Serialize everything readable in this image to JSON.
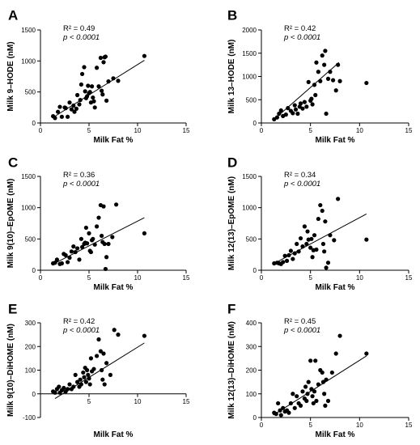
{
  "chart_data": [
    {
      "type": "scatter",
      "panel": "A",
      "xlabel": "Milk Fat %",
      "ylabel": "Milk 9–HODE (nM)",
      "xlim": [
        0,
        15
      ],
      "ylim": [
        0,
        1500
      ],
      "xticks": [
        0,
        5,
        10,
        15
      ],
      "yticks": [
        0,
        500,
        1000,
        1500
      ],
      "annotation": {
        "r2": "R² = 0.49",
        "p": "p < 0.0001"
      },
      "fit_line": {
        "x": [
          1.2,
          10.7
        ],
        "y": [
          80,
          1010
        ]
      },
      "points": [
        [
          1.3,
          110
        ],
        [
          1.5,
          80
        ],
        [
          1.8,
          180
        ],
        [
          2.0,
          260
        ],
        [
          2.2,
          100
        ],
        [
          2.5,
          250
        ],
        [
          2.6,
          240
        ],
        [
          2.8,
          100
        ],
        [
          3.0,
          330
        ],
        [
          3.2,
          220
        ],
        [
          3.4,
          280
        ],
        [
          3.5,
          180
        ],
        [
          3.7,
          230
        ],
        [
          3.8,
          450
        ],
        [
          4.0,
          300
        ],
        [
          4.1,
          370
        ],
        [
          4.2,
          620
        ],
        [
          4.3,
          790
        ],
        [
          4.5,
          900
        ],
        [
          4.6,
          510
        ],
        [
          4.7,
          400
        ],
        [
          4.8,
          430
        ],
        [
          4.9,
          600
        ],
        [
          5.0,
          480
        ],
        [
          5.1,
          500
        ],
        [
          5.2,
          330
        ],
        [
          5.3,
          590
        ],
        [
          5.4,
          410
        ],
        [
          5.5,
          350
        ],
        [
          5.6,
          250
        ],
        [
          5.8,
          890
        ],
        [
          6.0,
          590
        ],
        [
          6.2,
          1050
        ],
        [
          6.3,
          520
        ],
        [
          6.4,
          460
        ],
        [
          6.5,
          980
        ],
        [
          6.6,
          1060
        ],
        [
          6.7,
          1070
        ],
        [
          6.8,
          360
        ],
        [
          7.0,
          670
        ],
        [
          7.5,
          720
        ],
        [
          8.0,
          680
        ],
        [
          10.7,
          1080
        ]
      ]
    },
    {
      "type": "scatter",
      "panel": "B",
      "xlabel": "Milk Fat %",
      "ylabel": "Milk 13–HODE (nM)",
      "xlim": [
        0,
        15
      ],
      "ylim": [
        0,
        2000
      ],
      "xticks": [
        0,
        5,
        10,
        15
      ],
      "yticks": [
        0,
        500,
        1000,
        1500,
        2000
      ],
      "annotation": {
        "r2": "R² = 0.42",
        "p": "p < 0.0001"
      },
      "fit_line": {
        "x": [
          1.2,
          7.9
        ],
        "y": [
          60,
          1300
        ]
      },
      "points": [
        [
          1.3,
          80
        ],
        [
          1.6,
          120
        ],
        [
          1.8,
          200
        ],
        [
          2.0,
          270
        ],
        [
          2.2,
          150
        ],
        [
          2.5,
          180
        ],
        [
          2.7,
          320
        ],
        [
          3.0,
          260
        ],
        [
          3.2,
          210
        ],
        [
          3.4,
          380
        ],
        [
          3.5,
          290
        ],
        [
          3.7,
          200
        ],
        [
          3.9,
          350
        ],
        [
          4.0,
          420
        ],
        [
          4.2,
          310
        ],
        [
          4.4,
          450
        ],
        [
          4.6,
          350
        ],
        [
          4.8,
          880
        ],
        [
          5.0,
          480
        ],
        [
          5.1,
          520
        ],
        [
          5.2,
          400
        ],
        [
          5.4,
          820
        ],
        [
          5.5,
          600
        ],
        [
          5.6,
          1300
        ],
        [
          5.8,
          1100
        ],
        [
          6.0,
          900
        ],
        [
          6.2,
          1450
        ],
        [
          6.4,
          1250
        ],
        [
          6.5,
          1550
        ],
        [
          6.6,
          200
        ],
        [
          6.8,
          950
        ],
        [
          7.0,
          1100
        ],
        [
          7.3,
          920
        ],
        [
          7.6,
          700
        ],
        [
          7.8,
          1250
        ],
        [
          8.0,
          900
        ],
        [
          10.7,
          860
        ]
      ]
    },
    {
      "type": "scatter",
      "panel": "C",
      "xlabel": "Milk Fat %",
      "ylabel": "Milk 9(10)–EpOME (nM)",
      "xlim": [
        0,
        15
      ],
      "ylim": [
        0,
        1500
      ],
      "xticks": [
        0,
        5,
        10,
        15
      ],
      "yticks": [
        0,
        500,
        1000,
        1500
      ],
      "annotation": {
        "r2": "R² = 0.36",
        "p": "p < 0.0001"
      },
      "fit_line": {
        "x": [
          1.2,
          10.7
        ],
        "y": [
          90,
          840
        ]
      },
      "points": [
        [
          1.3,
          110
        ],
        [
          1.5,
          120
        ],
        [
          1.7,
          170
        ],
        [
          2.0,
          100
        ],
        [
          2.2,
          110
        ],
        [
          2.4,
          260
        ],
        [
          2.6,
          240
        ],
        [
          2.8,
          130
        ],
        [
          3.0,
          200
        ],
        [
          3.2,
          300
        ],
        [
          3.4,
          380
        ],
        [
          3.6,
          290
        ],
        [
          3.8,
          350
        ],
        [
          4.0,
          170
        ],
        [
          4.2,
          500
        ],
        [
          4.3,
          370
        ],
        [
          4.5,
          420
        ],
        [
          4.6,
          440
        ],
        [
          4.7,
          680
        ],
        [
          4.8,
          430
        ],
        [
          5.0,
          590
        ],
        [
          5.1,
          310
        ],
        [
          5.2,
          290
        ],
        [
          5.3,
          480
        ],
        [
          5.4,
          500
        ],
        [
          5.6,
          410
        ],
        [
          5.8,
          700
        ],
        [
          6.0,
          840
        ],
        [
          6.2,
          1040
        ],
        [
          6.3,
          550
        ],
        [
          6.4,
          450
        ],
        [
          6.5,
          1020
        ],
        [
          6.6,
          420
        ],
        [
          6.7,
          20
        ],
        [
          6.8,
          210
        ],
        [
          7.0,
          420
        ],
        [
          7.4,
          530
        ],
        [
          7.8,
          1050
        ],
        [
          10.7,
          590
        ]
      ]
    },
    {
      "type": "scatter",
      "panel": "D",
      "xlabel": "Milk Fat %",
      "ylabel": "Milk 12(13)–EpOME (nM)",
      "xlim": [
        0,
        15
      ],
      "ylim": [
        0,
        1500
      ],
      "xticks": [
        0,
        5,
        10,
        15
      ],
      "yticks": [
        0,
        500,
        1000,
        1500
      ],
      "annotation": {
        "r2": "R² = 0.34",
        "p": "p < 0.0001"
      },
      "fit_line": {
        "x": [
          1.2,
          10.7
        ],
        "y": [
          100,
          900
        ]
      },
      "points": [
        [
          1.3,
          110
        ],
        [
          1.6,
          120
        ],
        [
          1.8,
          110
        ],
        [
          2.0,
          100
        ],
        [
          2.2,
          130
        ],
        [
          2.4,
          230
        ],
        [
          2.6,
          150
        ],
        [
          2.8,
          240
        ],
        [
          3.0,
          310
        ],
        [
          3.2,
          180
        ],
        [
          3.4,
          270
        ],
        [
          3.6,
          420
        ],
        [
          3.8,
          300
        ],
        [
          4.0,
          510
        ],
        [
          4.2,
          380
        ],
        [
          4.4,
          700
        ],
        [
          4.6,
          420
        ],
        [
          4.7,
          620
        ],
        [
          4.8,
          490
        ],
        [
          5.0,
          360
        ],
        [
          5.1,
          500
        ],
        [
          5.2,
          210
        ],
        [
          5.3,
          320
        ],
        [
          5.4,
          560
        ],
        [
          5.6,
          330
        ],
        [
          5.8,
          820
        ],
        [
          6.0,
          1040
        ],
        [
          6.2,
          950
        ],
        [
          6.3,
          420
        ],
        [
          6.4,
          300
        ],
        [
          6.5,
          780
        ],
        [
          6.6,
          40
        ],
        [
          6.8,
          120
        ],
        [
          7.0,
          560
        ],
        [
          7.4,
          480
        ],
        [
          7.8,
          1140
        ],
        [
          10.7,
          490
        ]
      ]
    },
    {
      "type": "scatter",
      "panel": "E",
      "xlabel": "Milk Fat %",
      "ylabel": "Milk 9(10)–DiHOME (nM)",
      "xlim": [
        0,
        15
      ],
      "ylim": [
        -100,
        300
      ],
      "xticks": [
        5,
        10,
        15
      ],
      "yticks": [
        -100,
        0,
        100,
        200,
        300
      ],
      "annotation": {
        "r2": "R² = 0.42",
        "p": "p < 0.0001"
      },
      "fit_line": {
        "x": [
          1.5,
          10.7
        ],
        "y": [
          -20,
          215
        ]
      },
      "points": [
        [
          1.3,
          10
        ],
        [
          1.5,
          5
        ],
        [
          1.7,
          20
        ],
        [
          1.9,
          30
        ],
        [
          2.0,
          5
        ],
        [
          2.2,
          15
        ],
        [
          2.4,
          25
        ],
        [
          2.6,
          10
        ],
        [
          2.8,
          20
        ],
        [
          3.0,
          40
        ],
        [
          3.2,
          20
        ],
        [
          3.4,
          30
        ],
        [
          3.6,
          80
        ],
        [
          3.8,
          50
        ],
        [
          4.0,
          30
        ],
        [
          4.1,
          60
        ],
        [
          4.2,
          40
        ],
        [
          4.4,
          90
        ],
        [
          4.5,
          70
        ],
        [
          4.6,
          110
        ],
        [
          4.7,
          50
        ],
        [
          4.8,
          100
        ],
        [
          4.9,
          80
        ],
        [
          5.0,
          65
        ],
        [
          5.1,
          40
        ],
        [
          5.2,
          150
        ],
        [
          5.3,
          95
        ],
        [
          5.5,
          105
        ],
        [
          5.8,
          160
        ],
        [
          6.0,
          230
        ],
        [
          6.2,
          180
        ],
        [
          6.3,
          100
        ],
        [
          6.4,
          60
        ],
        [
          6.5,
          170
        ],
        [
          6.6,
          40
        ],
        [
          6.8,
          130
        ],
        [
          7.2,
          80
        ],
        [
          7.6,
          270
        ],
        [
          8.0,
          250
        ],
        [
          10.7,
          245
        ]
      ]
    },
    {
      "type": "scatter",
      "panel": "F",
      "xlabel": "Milk Fat %",
      "ylabel": "Milk 12(13)–DiHOME (nM)",
      "xlim": [
        0,
        15
      ],
      "ylim": [
        0,
        400
      ],
      "xticks": [
        0,
        5,
        10,
        15
      ],
      "yticks": [
        0,
        100,
        200,
        300,
        400
      ],
      "annotation": {
        "r2": "R² = 0.45",
        "p": "p < 0.0001"
      },
      "fit_line": {
        "x": [
          1.2,
          10.7
        ],
        "y": [
          10,
          260
        ]
      },
      "points": [
        [
          1.3,
          20
        ],
        [
          1.5,
          15
        ],
        [
          1.7,
          60
        ],
        [
          1.9,
          30
        ],
        [
          2.0,
          10
        ],
        [
          2.2,
          40
        ],
        [
          2.4,
          25
        ],
        [
          2.6,
          30
        ],
        [
          2.8,
          20
        ],
        [
          3.0,
          60
        ],
        [
          3.2,
          100
        ],
        [
          3.4,
          40
        ],
        [
          3.6,
          90
        ],
        [
          3.8,
          60
        ],
        [
          4.0,
          50
        ],
        [
          4.2,
          110
        ],
        [
          4.4,
          80
        ],
        [
          4.5,
          130
        ],
        [
          4.6,
          70
        ],
        [
          4.7,
          100
        ],
        [
          4.8,
          150
        ],
        [
          5.0,
          240
        ],
        [
          5.1,
          120
        ],
        [
          5.2,
          90
        ],
        [
          5.3,
          60
        ],
        [
          5.4,
          110
        ],
        [
          5.5,
          240
        ],
        [
          5.6,
          70
        ],
        [
          5.8,
          140
        ],
        [
          6.0,
          200
        ],
        [
          6.2,
          190
        ],
        [
          6.3,
          150
        ],
        [
          6.4,
          100
        ],
        [
          6.5,
          50
        ],
        [
          6.6,
          160
        ],
        [
          6.8,
          70
        ],
        [
          7.2,
          190
        ],
        [
          7.6,
          270
        ],
        [
          8.0,
          345
        ],
        [
          10.7,
          270
        ]
      ]
    }
  ]
}
